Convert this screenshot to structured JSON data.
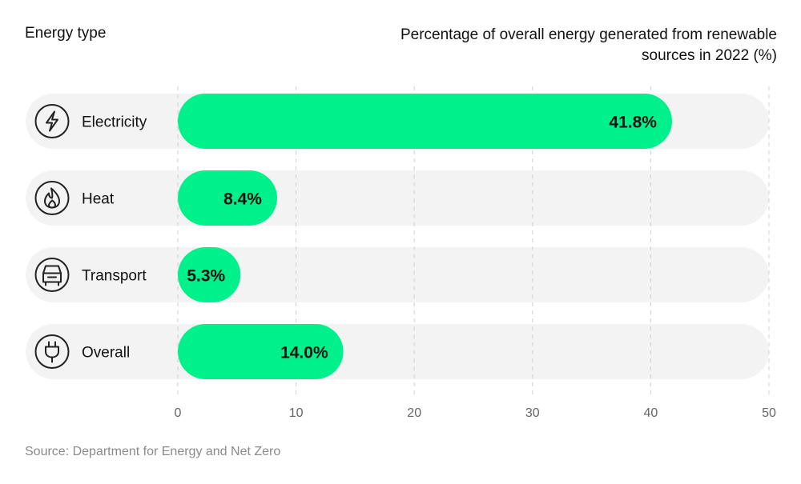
{
  "headers": {
    "left": "Energy type",
    "right": "Percentage of overall energy generated from renewable sources in 2022 (%)"
  },
  "source": "Source: Department for Energy and Net Zero",
  "colors": {
    "bar": "#00f08c",
    "track": "#f3f3f3",
    "grid": "#cfcfcf",
    "text": "#111111",
    "tick": "#666666",
    "icon_stroke": "#222222"
  },
  "chart_data": {
    "type": "bar",
    "orientation": "horizontal",
    "categories": [
      "Electricity",
      "Heat",
      "Transport",
      "Overall"
    ],
    "icons": [
      "lightning-icon",
      "flame-icon",
      "car-icon",
      "plug-icon"
    ],
    "values": [
      41.8,
      8.4,
      5.3,
      14.0
    ],
    "value_labels": [
      "41.8%",
      "8.4%",
      "5.3%",
      "14.0%"
    ],
    "title": "Percentage of overall energy generated from renewable sources in 2022 (%)",
    "xlabel": "",
    "ylabel": "Energy type",
    "xlim": [
      0,
      50
    ],
    "xticks": [
      0,
      10,
      20,
      30,
      40,
      50
    ],
    "grid": true
  }
}
